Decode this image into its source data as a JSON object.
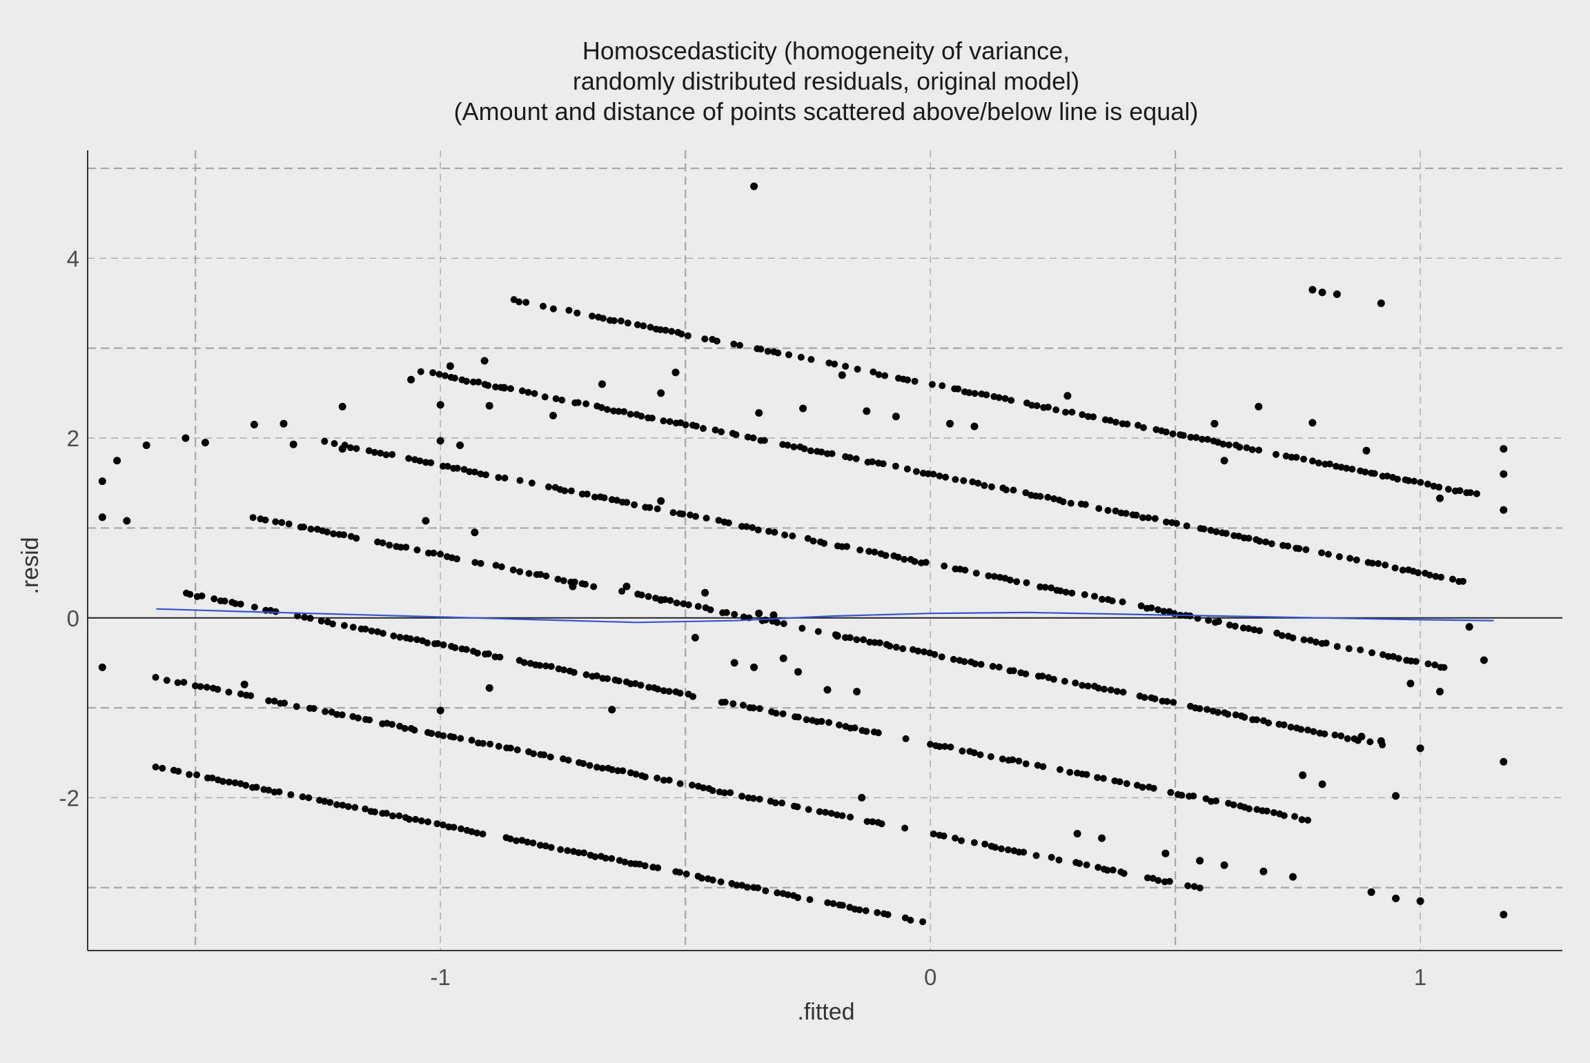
{
  "chart_data": {
    "type": "scatter",
    "title_lines": [
      "Homoscedasticity (homogeneity of variance,",
      "randomly distributed residuals, original model)",
      "(Amount and distance of points scattered above/below line is equal)"
    ],
    "xlabel": ".fitted",
    "ylabel": ".resid",
    "xlim": [
      -1.72,
      1.29
    ],
    "ylim": [
      -3.7,
      5.2
    ],
    "x_ticks": [
      -1,
      0,
      1
    ],
    "x_tick_labels": [
      "-1",
      "0",
      "1"
    ],
    "y_ticks": [
      -2,
      0,
      2,
      4
    ],
    "y_tick_labels": [
      "-2",
      "0",
      "2",
      "4"
    ],
    "x_minor_gridlines": [
      -1.5,
      -0.5,
      0.5
    ],
    "y_minor_gridlines": [
      -3,
      -1,
      1,
      3,
      5
    ],
    "grid": "dashed",
    "reference_line_y": 0,
    "colors": {
      "points": "#000000",
      "smooth": "#3355cc",
      "background": "#ebebeb",
      "grid": "#a6a6a6"
    },
    "smooth_series": {
      "name": "",
      "x": [
        -1.58,
        -1.4,
        -1.2,
        -1.0,
        -0.8,
        -0.6,
        -0.4,
        -0.2,
        0.0,
        0.2,
        0.4,
        0.6,
        0.8,
        1.0,
        1.15
      ],
      "y": [
        0.1,
        0.07,
        0.04,
        0.01,
        -0.02,
        -0.05,
        -0.03,
        0.02,
        0.05,
        0.06,
        0.04,
        0.02,
        0.0,
        -0.02,
        -0.03
      ]
    },
    "band_offsets": [
      -3,
      -2,
      -1,
      0,
      1,
      2,
      3
    ],
    "band_range": {
      "x_start": [
        -1.58,
        -1.58,
        -1.52,
        -1.38,
        -1.25,
        -1.05,
        -0.85
      ],
      "x_end": [
        0.38,
        0.55,
        0.78,
        0.95,
        1.05,
        1.1,
        1.15
      ]
    },
    "points": [
      [
        -0.36,
        4.8
      ],
      [
        0.78,
        3.65
      ],
      [
        0.8,
        3.62
      ],
      [
        0.83,
        3.6
      ],
      [
        0.92,
        3.5
      ],
      [
        -0.91,
        2.86
      ],
      [
        -0.98,
        2.8
      ],
      [
        -0.52,
        2.73
      ],
      [
        -1.06,
        2.65
      ],
      [
        -0.18,
        2.7
      ],
      [
        -0.87,
        2.56
      ],
      [
        -0.55,
        2.5
      ],
      [
        0.28,
        2.47
      ],
      [
        -0.67,
        2.6
      ],
      [
        -1.2,
        2.35
      ],
      [
        -1.0,
        2.37
      ],
      [
        0.67,
        2.35
      ],
      [
        -0.9,
        2.36
      ],
      [
        -0.26,
        2.33
      ],
      [
        -0.13,
        2.3
      ],
      [
        -0.77,
        2.25
      ],
      [
        -0.35,
        2.28
      ],
      [
        -0.07,
        2.24
      ],
      [
        0.58,
        2.16
      ],
      [
        -1.38,
        2.15
      ],
      [
        -1.32,
        2.16
      ],
      [
        0.78,
        2.17
      ],
      [
        0.04,
        2.16
      ],
      [
        0.09,
        2.13
      ],
      [
        -1.52,
        2.0
      ],
      [
        -1.48,
        1.95
      ],
      [
        -1.6,
        1.92
      ],
      [
        -1.3,
        1.93
      ],
      [
        -1.2,
        1.88
      ],
      [
        -1.0,
        1.97
      ],
      [
        -0.96,
        1.92
      ],
      [
        0.89,
        1.86
      ],
      [
        1.17,
        1.88
      ],
      [
        -1.66,
        1.75
      ],
      [
        -1.69,
        1.52
      ],
      [
        -1.69,
        1.12
      ],
      [
        -1.64,
        1.08
      ],
      [
        1.17,
        1.6
      ],
      [
        1.17,
        1.2
      ],
      [
        1.04,
        1.33
      ],
      [
        -1.03,
        1.08
      ],
      [
        -0.93,
        0.95
      ],
      [
        -0.55,
        1.3
      ],
      [
        0.6,
        1.75
      ],
      [
        -0.73,
        0.35
      ],
      [
        -0.62,
        0.35
      ],
      [
        -0.55,
        0.2
      ],
      [
        -0.48,
        -0.22
      ],
      [
        -0.46,
        0.28
      ],
      [
        -0.4,
        -0.5
      ],
      [
        -0.36,
        -0.55
      ],
      [
        -0.35,
        0.05
      ],
      [
        -0.32,
        0.03
      ],
      [
        -0.3,
        -0.45
      ],
      [
        -0.27,
        -0.6
      ],
      [
        -0.21,
        -0.8
      ],
      [
        -0.19,
        -0.2
      ],
      [
        -0.15,
        -0.82
      ],
      [
        -0.14,
        -2.0
      ],
      [
        -0.65,
        -1.02
      ],
      [
        -1.0,
        -1.03
      ],
      [
        -0.9,
        -0.78
      ],
      [
        -1.4,
        -0.74
      ],
      [
        0.95,
        -1.98
      ],
      [
        1.0,
        -1.45
      ],
      [
        1.17,
        -1.6
      ],
      [
        1.17,
        -3.3
      ],
      [
        0.98,
        -0.73
      ],
      [
        1.04,
        -0.82
      ],
      [
        1.1,
        -0.1
      ],
      [
        1.13,
        -0.47
      ],
      [
        0.3,
        -2.4
      ],
      [
        0.35,
        -2.45
      ],
      [
        0.48,
        -2.62
      ],
      [
        0.55,
        -2.7
      ],
      [
        0.6,
        -2.75
      ],
      [
        0.68,
        -2.82
      ],
      [
        0.74,
        -2.88
      ],
      [
        0.9,
        -3.05
      ],
      [
        0.95,
        -3.12
      ],
      [
        1.0,
        -3.15
      ],
      [
        0.88,
        -1.32
      ],
      [
        0.92,
        -1.37
      ],
      [
        0.76,
        -1.75
      ],
      [
        0.8,
        -1.85
      ],
      [
        -1.69,
        -0.55
      ]
    ]
  }
}
